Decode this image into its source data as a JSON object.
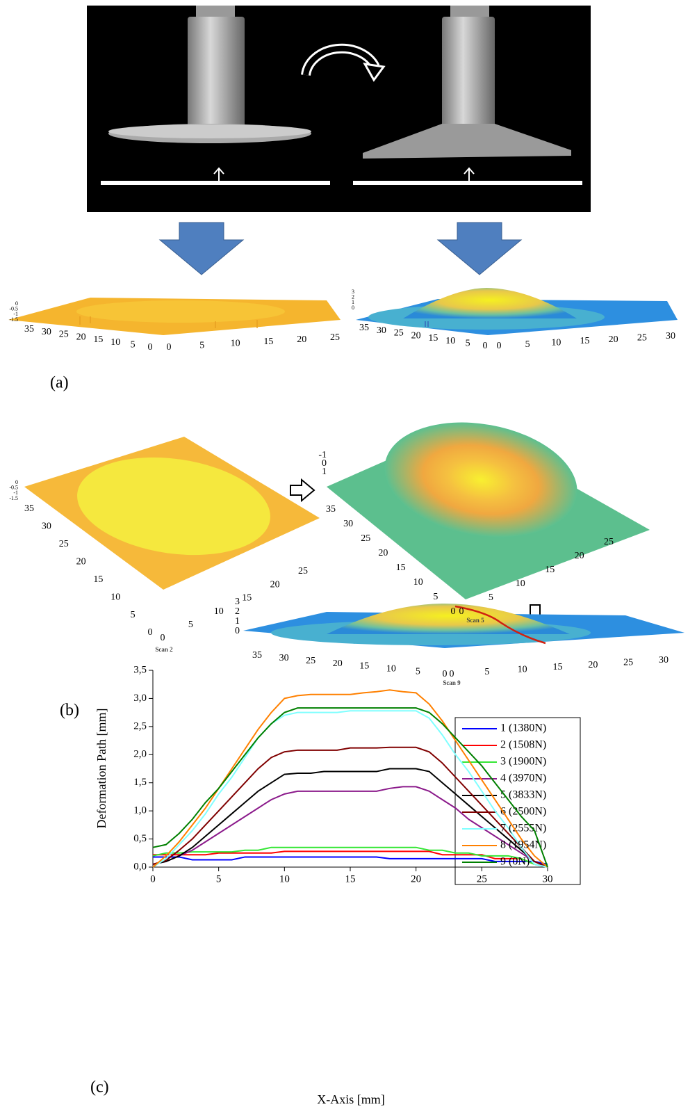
{
  "panel_a": {
    "label": "(a)",
    "plot_left": {
      "x_ticks": [
        35,
        30,
        25,
        20,
        15,
        10,
        5,
        0
      ],
      "y_ticks": [
        0,
        5,
        10,
        15,
        20,
        25
      ],
      "z_ticks": [
        0,
        -0.5,
        -1,
        -1.5
      ]
    },
    "plot_right": {
      "x_ticks": [
        35,
        30,
        25,
        20,
        15,
        10,
        5,
        0
      ],
      "y_ticks": [
        0,
        5,
        10,
        15,
        20,
        25,
        30
      ],
      "z_ticks": [
        3,
        2,
        1,
        0
      ]
    }
  },
  "panel_b": {
    "label": "(b)",
    "scan_2": {
      "title": "Scan 2",
      "x_ticks": [
        35,
        30,
        25,
        20,
        15,
        10,
        5,
        0
      ],
      "y_ticks": [
        0,
        5,
        10,
        15,
        20,
        25
      ],
      "z_ticks": [
        0,
        -0.5,
        -1,
        -1.5
      ]
    },
    "scan_5": {
      "title": "Scan 5",
      "x_ticks": [
        35,
        30,
        25,
        20,
        15,
        10,
        5,
        0
      ],
      "y_ticks": [
        0,
        5,
        10,
        15,
        20,
        25
      ],
      "z_ticks": [
        -1,
        0,
        1
      ]
    },
    "scan_9": {
      "title": "Scan 9",
      "x_ticks": [
        35,
        30,
        25,
        20,
        15,
        10,
        5,
        0
      ],
      "y_ticks": [
        0,
        5,
        10,
        15,
        20,
        25,
        30
      ],
      "z_ticks": [
        3,
        2,
        1,
        0
      ]
    }
  },
  "panel_c": {
    "label": "(c)"
  },
  "chart_data": {
    "type": "line",
    "x_label": "X-Axis [mm]",
    "y_label": "Deformation Path [mm]",
    "x": [
      0,
      1,
      2,
      3,
      4,
      5,
      6,
      7,
      8,
      9,
      10,
      11,
      12,
      13,
      14,
      15,
      16,
      17,
      18,
      19,
      20,
      21,
      22,
      23,
      24,
      25,
      26,
      27,
      28,
      29,
      30
    ],
    "xlim": [
      0,
      30
    ],
    "ylim": [
      0,
      3.5
    ],
    "xticks": [
      0,
      5,
      10,
      15,
      20,
      25,
      30
    ],
    "yticks": [
      {
        "value": 0,
        "label": "0,0"
      },
      {
        "value": 0.5,
        "label": "0,5"
      },
      {
        "value": 1,
        "label": "1,0"
      },
      {
        "value": 1.5,
        "label": "1,5"
      },
      {
        "value": 2,
        "label": "2,0"
      },
      {
        "value": 2.5,
        "label": "2,5"
      },
      {
        "value": 3,
        "label": "3,0"
      },
      {
        "value": 3.5,
        "label": "3,5"
      }
    ],
    "legend": "upper right",
    "series": [
      {
        "name": "1 (1380N)",
        "color": "#0000ff",
        "values": [
          0.18,
          0.18,
          0.18,
          0.13,
          0.13,
          0.13,
          0.13,
          0.18,
          0.18,
          0.18,
          0.18,
          0.18,
          0.18,
          0.18,
          0.18,
          0.18,
          0.18,
          0.18,
          0.15,
          0.15,
          0.15,
          0.15,
          0.15,
          0.15,
          0.15,
          0.15,
          0.1,
          0.1,
          0.1,
          0.1,
          0.05
        ]
      },
      {
        "name": "2 (1508N)",
        "color": "#ff0000",
        "values": [
          0.22,
          0.22,
          0.22,
          0.22,
          0.22,
          0.25,
          0.25,
          0.25,
          0.25,
          0.25,
          0.28,
          0.28,
          0.28,
          0.28,
          0.28,
          0.28,
          0.28,
          0.28,
          0.28,
          0.28,
          0.28,
          0.28,
          0.22,
          0.22,
          0.22,
          0.22,
          0.15,
          0.15,
          0.15,
          0.05,
          0
        ]
      },
      {
        "name": "3 (1900N)",
        "color": "#33e633",
        "values": [
          0.2,
          0.25,
          0.25,
          0.27,
          0.27,
          0.27,
          0.27,
          0.3,
          0.3,
          0.35,
          0.35,
          0.35,
          0.35,
          0.35,
          0.35,
          0.35,
          0.35,
          0.35,
          0.35,
          0.35,
          0.35,
          0.3,
          0.3,
          0.25,
          0.25,
          0.2,
          0.2,
          0.2,
          0.15,
          0.05,
          0
        ]
      },
      {
        "name": "4 (3970N)",
        "color": "#8b1a8b",
        "values": [
          0.05,
          0.1,
          0.2,
          0.3,
          0.45,
          0.6,
          0.75,
          0.9,
          1.05,
          1.2,
          1.3,
          1.35,
          1.35,
          1.35,
          1.35,
          1.35,
          1.35,
          1.35,
          1.4,
          1.43,
          1.43,
          1.35,
          1.2,
          1.05,
          0.85,
          0.7,
          0.55,
          0.4,
          0.25,
          0.1,
          0
        ]
      },
      {
        "name": "5 (3833N)",
        "color": "#000000",
        "values": [
          0.05,
          0.1,
          0.2,
          0.35,
          0.55,
          0.75,
          0.95,
          1.15,
          1.35,
          1.5,
          1.65,
          1.67,
          1.67,
          1.7,
          1.7,
          1.7,
          1.7,
          1.7,
          1.75,
          1.75,
          1.75,
          1.7,
          1.5,
          1.3,
          1.1,
          0.9,
          0.7,
          0.5,
          0.3,
          0.1,
          0
        ]
      },
      {
        "name": "6 (2500N)",
        "color": "#800000",
        "values": [
          0.05,
          0.12,
          0.3,
          0.5,
          0.75,
          1.0,
          1.25,
          1.5,
          1.75,
          1.95,
          2.05,
          2.08,
          2.08,
          2.08,
          2.08,
          2.12,
          2.12,
          2.12,
          2.13,
          2.13,
          2.13,
          2.05,
          1.85,
          1.6,
          1.35,
          1.1,
          0.85,
          0.6,
          0.35,
          0.1,
          0
        ]
      },
      {
        "name": "7 (2555N)",
        "color": "#80ffff",
        "values": [
          0,
          0.15,
          0.4,
          0.65,
          0.95,
          1.3,
          1.6,
          1.95,
          2.3,
          2.55,
          2.7,
          2.75,
          2.75,
          2.75,
          2.75,
          2.78,
          2.78,
          2.78,
          2.78,
          2.78,
          2.78,
          2.65,
          2.35,
          2.0,
          1.7,
          1.35,
          1.0,
          0.7,
          0.35,
          0.05,
          0
        ]
      },
      {
        "name": "8 (1954N)",
        "color": "#ff8000",
        "values": [
          0,
          0.2,
          0.45,
          0.75,
          1.05,
          1.4,
          1.75,
          2.1,
          2.45,
          2.75,
          3.0,
          3.05,
          3.07,
          3.07,
          3.07,
          3.07,
          3.1,
          3.12,
          3.15,
          3.12,
          3.1,
          2.9,
          2.6,
          2.25,
          1.9,
          1.55,
          1.2,
          0.85,
          0.5,
          0.2,
          0
        ]
      },
      {
        "name": "9 (0N)",
        "color": "#008000",
        "values": [
          0.35,
          0.4,
          0.6,
          0.85,
          1.15,
          1.4,
          1.7,
          2.0,
          2.3,
          2.55,
          2.75,
          2.83,
          2.83,
          2.83,
          2.83,
          2.83,
          2.83,
          2.83,
          2.83,
          2.83,
          2.83,
          2.75,
          2.55,
          2.3,
          2.05,
          1.8,
          1.5,
          1.2,
          0.9,
          0.65,
          0
        ]
      }
    ]
  }
}
